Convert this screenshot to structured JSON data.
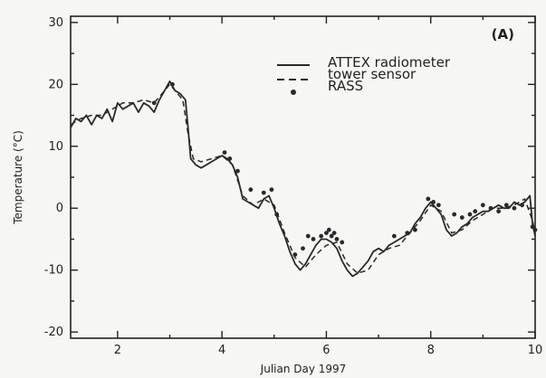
{
  "chart_data": {
    "type": "line",
    "panel_label": "(A)",
    "xlabel": "Julian Day 1997",
    "ylabel": "Temperature (°C)",
    "xlim": [
      1.1,
      10.0
    ],
    "ylim": [
      -21,
      31
    ],
    "x_ticks": [
      2,
      4,
      6,
      8,
      10
    ],
    "y_ticks": [
      -20,
      -10,
      0,
      10,
      20,
      30
    ],
    "legend": {
      "position": "top-right",
      "entries": [
        {
          "label": "ATTEX radiometer",
          "style": "solid"
        },
        {
          "label": "tower sensor",
          "style": "dashed"
        },
        {
          "label": "RASS",
          "style": "dots"
        }
      ]
    },
    "series": [
      {
        "name": "ATTEX radiometer",
        "style": "solid",
        "color": "#2a2a2a",
        "x": [
          1.1,
          1.2,
          1.3,
          1.4,
          1.5,
          1.6,
          1.7,
          1.8,
          1.9,
          2.0,
          2.1,
          2.2,
          2.3,
          2.4,
          2.5,
          2.6,
          2.7,
          2.8,
          2.9,
          3.0,
          3.1,
          3.2,
          3.3,
          3.35,
          3.4,
          3.5,
          3.6,
          3.7,
          3.8,
          3.9,
          4.0,
          4.1,
          4.2,
          4.3,
          4.4,
          4.5,
          4.6,
          4.7,
          4.8,
          4.9,
          5.0,
          5.1,
          5.2,
          5.3,
          5.4,
          5.5,
          5.6,
          5.7,
          5.8,
          5.9,
          6.0,
          6.1,
          6.2,
          6.3,
          6.4,
          6.5,
          6.6,
          6.7,
          6.8,
          6.9,
          7.0,
          7.1,
          7.2,
          7.3,
          7.4,
          7.5,
          7.6,
          7.7,
          7.8,
          7.9,
          8.0,
          8.1,
          8.2,
          8.3,
          8.4,
          8.5,
          8.6,
          8.7,
          8.8,
          8.9,
          9.0,
          9.1,
          9.2,
          9.3,
          9.4,
          9.5,
          9.6,
          9.7,
          9.8,
          9.9,
          9.95,
          10.0
        ],
        "y": [
          13,
          14.5,
          14,
          15,
          13.5,
          15,
          14.5,
          16,
          14,
          17,
          16,
          16.5,
          17,
          15.5,
          17,
          16.5,
          15.5,
          17.5,
          19,
          20.5,
          19,
          18.5,
          17.5,
          13,
          8,
          7,
          6.5,
          7,
          7.5,
          8,
          8.5,
          8,
          7,
          5,
          1.5,
          1,
          0.5,
          0,
          1.5,
          2,
          0,
          -2.5,
          -4.5,
          -7,
          -9,
          -10,
          -9,
          -7.5,
          -6,
          -5,
          -5,
          -5.5,
          -6.5,
          -8.5,
          -10,
          -11,
          -10.5,
          -9.5,
          -8.5,
          -7,
          -6.5,
          -7,
          -6,
          -5.5,
          -5,
          -4.5,
          -4,
          -2.5,
          -1.5,
          0,
          1,
          0,
          -1,
          -3.5,
          -4.5,
          -4,
          -3,
          -2.5,
          -1.5,
          -1,
          -0.5,
          -0.5,
          0,
          0.5,
          0,
          0,
          1,
          0.5,
          1,
          2,
          -2.5,
          -4.5
        ]
      },
      {
        "name": "tower sensor",
        "style": "dashed",
        "color": "#2a2a2a",
        "x": [
          1.1,
          1.3,
          1.5,
          1.7,
          1.9,
          2.1,
          2.3,
          2.5,
          2.7,
          2.9,
          3.0,
          3.1,
          3.25,
          3.35,
          3.45,
          3.6,
          3.8,
          4.0,
          4.2,
          4.4,
          4.6,
          4.8,
          5.0,
          5.2,
          5.4,
          5.6,
          5.8,
          6.0,
          6.2,
          6.4,
          6.6,
          6.8,
          7.0,
          7.2,
          7.4,
          7.6,
          7.8,
          8.0,
          8.2,
          8.4,
          8.6,
          8.8,
          9.0,
          9.2,
          9.4,
          9.6,
          9.8,
          9.95,
          10.0
        ],
        "y": [
          13.5,
          14.5,
          15,
          15,
          16,
          17,
          17,
          17.5,
          17,
          19,
          20,
          19,
          17.5,
          12,
          8,
          7.5,
          8,
          8.5,
          7,
          2,
          0.5,
          1.5,
          0.5,
          -4,
          -8,
          -9.5,
          -7.5,
          -6,
          -5.5,
          -9,
          -10.5,
          -10,
          -7.5,
          -6.5,
          -6,
          -4,
          -2,
          0.5,
          -0.5,
          -4,
          -3.5,
          -2,
          -1,
          0,
          0,
          0.5,
          1.5,
          -2,
          -4
        ]
      }
    ],
    "rass": {
      "name": "RASS",
      "x": [
        2.7,
        3.05,
        4.05,
        4.15,
        4.3,
        4.55,
        4.8,
        4.95,
        5.05,
        5.4,
        5.55,
        5.65,
        5.75,
        5.9,
        6.0,
        6.05,
        6.1,
        6.15,
        6.2,
        6.3,
        7.3,
        7.55,
        7.7,
        7.95,
        8.05,
        8.15,
        8.45,
        8.6,
        8.75,
        8.85,
        9.0,
        9.15,
        9.3,
        9.45,
        9.6,
        9.75,
        9.95,
        10.0
      ],
      "y": [
        17,
        20,
        9,
        8,
        6,
        3,
        2.5,
        3,
        -1,
        -7.5,
        -6.5,
        -4.5,
        -5,
        -4.5,
        -4,
        -3.5,
        -4.5,
        -4,
        -5,
        -5.5,
        -4.5,
        -4,
        -3.5,
        1.5,
        1,
        0.5,
        -1,
        -1.5,
        -1,
        -0.5,
        0.5,
        0,
        -0.5,
        0.5,
        0,
        0.5,
        -3,
        -3.5
      ]
    }
  }
}
